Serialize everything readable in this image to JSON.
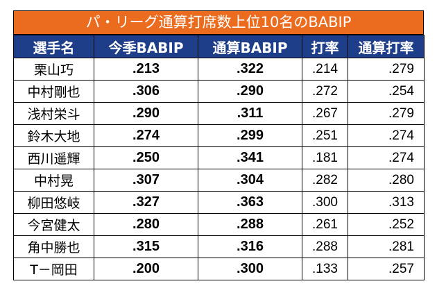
{
  "title": "パ・リーグ通算打席数上位10名のBABIP",
  "headers": [
    "選手名",
    "今季BABIP",
    "通算BABIP",
    "打率",
    "通算打率"
  ],
  "rows": [
    {
      "name": "栗山巧",
      "season_babip": ".213",
      "career_babip": ".322",
      "avg": ".214",
      "career_avg": ".279"
    },
    {
      "name": "中村剛也",
      "season_babip": ".306",
      "career_babip": ".290",
      "avg": ".272",
      "career_avg": ".254"
    },
    {
      "name": "浅村栄斗",
      "season_babip": ".290",
      "career_babip": ".311",
      "avg": ".267",
      "career_avg": ".279"
    },
    {
      "name": "鈴木大地",
      "season_babip": ".274",
      "career_babip": ".299",
      "avg": ".251",
      "career_avg": ".274"
    },
    {
      "name": "西川遥輝",
      "season_babip": ".250",
      "career_babip": ".341",
      "avg": ".181",
      "career_avg": ".274"
    },
    {
      "name": "中村晃",
      "season_babip": ".307",
      "career_babip": ".304",
      "avg": ".282",
      "career_avg": ".280"
    },
    {
      "name": "柳田悠岐",
      "season_babip": ".327",
      "career_babip": ".363",
      "avg": ".300",
      "career_avg": ".313"
    },
    {
      "name": "今宮健太",
      "season_babip": ".280",
      "career_babip": ".288",
      "avg": ".261",
      "career_avg": ".252"
    },
    {
      "name": "角中勝也",
      "season_babip": ".315",
      "career_babip": ".316",
      "avg": ".288",
      "career_avg": ".281"
    },
    {
      "name": "T－岡田",
      "season_babip": ".200",
      "career_babip": ".300",
      "avg": ".133",
      "career_avg": ".257"
    }
  ]
}
